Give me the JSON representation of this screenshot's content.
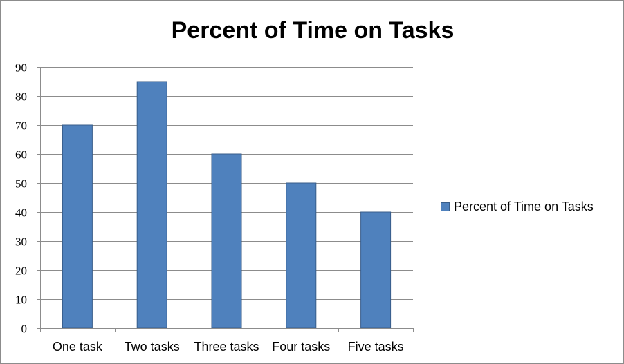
{
  "chart_data": {
    "type": "bar",
    "title": "Percent of Time on Tasks",
    "categories": [
      "One task",
      "Two tasks",
      "Three tasks",
      "Four tasks",
      "Five tasks"
    ],
    "series": [
      {
        "name": "Percent of Time on Tasks",
        "values": [
          70,
          85,
          60,
          50,
          40
        ],
        "color": "#4f81bd"
      }
    ],
    "ylim": [
      0,
      90
    ],
    "yticks": [
      0,
      10,
      20,
      30,
      40,
      50,
      60,
      70,
      80,
      90
    ],
    "grid": true,
    "legend_position": "right"
  }
}
